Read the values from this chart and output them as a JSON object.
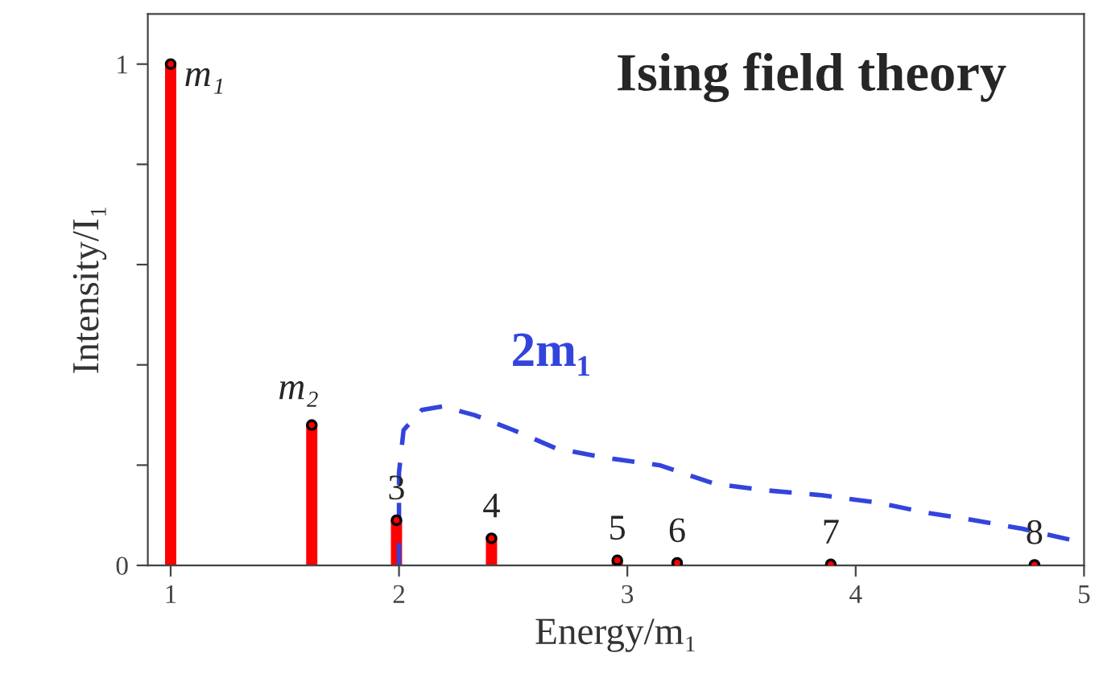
{
  "chart_data": {
    "type": "lollipop",
    "title": "Ising field theory",
    "xlabel": "Energy/m₁",
    "ylabel": "Intensity/I₁",
    "xlim": [
      0.9,
      5
    ],
    "xticks": [
      1,
      2,
      3,
      4,
      5
    ],
    "ylim": [
      0,
      1.1
    ],
    "yticks": [
      0,
      {
        "value": 0.2,
        "label": null
      },
      {
        "value": 0.4,
        "label": null
      },
      {
        "value": 0.6,
        "label": null
      },
      {
        "value": 0.8,
        "label": null
      },
      1
    ],
    "grid": false,
    "series": [
      {
        "color": "#ff0000",
        "marker": "circle",
        "x": [
          1,
          1.618,
          1.989,
          2.405,
          2.956,
          3.218,
          3.891,
          4.783
        ],
        "values": [
          1,
          0.28,
          0.09,
          0.054,
          0.01,
          0.005,
          0.002,
          0.001
        ]
      },
      {
        "type": "line",
        "name": "2m₁",
        "color": "#3344dd",
        "line_style": "dashed",
        "x": [
          2.0,
          2.0,
          2.02,
          2.1,
          2.19,
          2.33,
          2.5,
          2.69,
          2.9,
          3.14,
          3.38,
          3.6,
          3.85,
          4.1,
          4.31,
          4.52,
          4.73,
          5.0
        ],
        "values": [
          0,
          0.185,
          0.27,
          0.31,
          0.317,
          0.3,
          0.27,
          0.233,
          0.215,
          0.2,
          0.163,
          0.15,
          0.14,
          0.125,
          0.105,
          0.09,
          0.073,
          0.045
        ]
      }
    ],
    "annotations": [
      {
        "text": "m₁",
        "x": 1,
        "y": 1
      },
      {
        "text": "m₂",
        "x": 1.618,
        "y": 0.28
      },
      {
        "text": "3",
        "x": 1.989,
        "y": 0.09
      },
      {
        "text": "4",
        "x": 2.405,
        "y": 0.054
      },
      {
        "text": "5",
        "x": 2.956,
        "y": 0.01
      },
      {
        "text": "6",
        "x": 3.218,
        "y": 0.005
      },
      {
        "text": "7",
        "x": 3.891,
        "y": 0.002
      },
      {
        "text": "8",
        "x": 4.783,
        "y": 0.001
      }
    ]
  }
}
